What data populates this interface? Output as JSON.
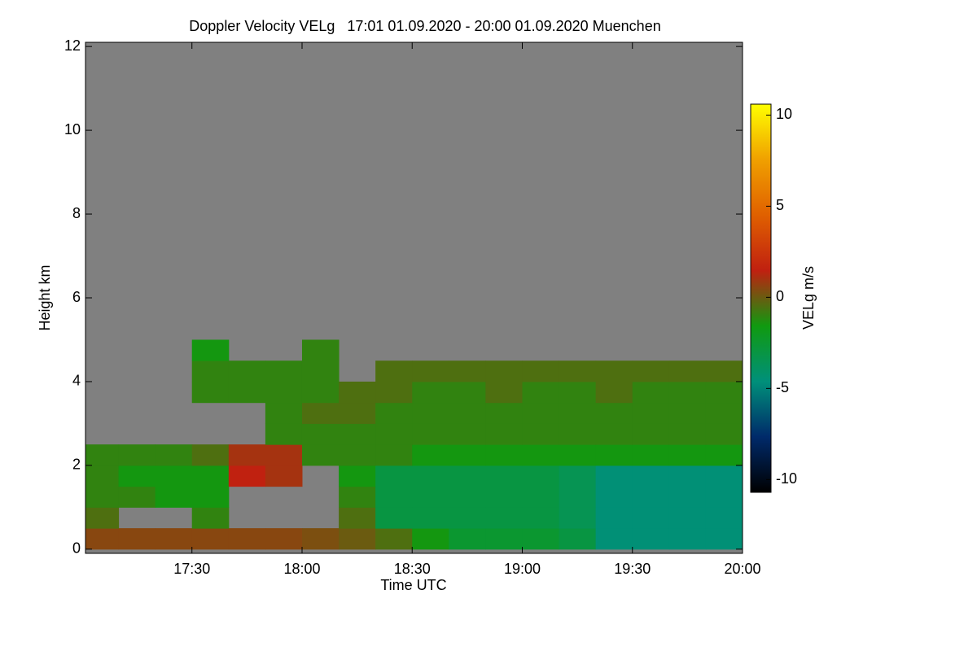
{
  "chart_data": {
    "type": "heatmap",
    "title": "Doppler Velocity VELg   17:01 01.09.2020 - 20:00 01.09.2020 Muenchen",
    "xlabel": "Time UTC",
    "ylabel": "Height km",
    "colorbar_label": "VELg m/s",
    "background": "#808080",
    "xlim": [
      17.0167,
      20.0
    ],
    "xticks": [
      {
        "value": 17.5,
        "label": "17:30"
      },
      {
        "value": 18.0,
        "label": "18:00"
      },
      {
        "value": 18.5,
        "label": "18:30"
      },
      {
        "value": 19.0,
        "label": "19:00"
      },
      {
        "value": 19.5,
        "label": "19:30"
      },
      {
        "value": 20.0,
        "label": "20:00"
      }
    ],
    "ylim": [
      -0.1,
      12.1
    ],
    "yticks": [
      0,
      2,
      4,
      6,
      8,
      10,
      12
    ],
    "clim": [
      -10.7,
      10.6
    ],
    "cticks": [
      -10,
      -5,
      0,
      5,
      10
    ],
    "colormap": [
      "#000000",
      "#002a6a",
      "#00907a",
      "#109a10",
      "#c02010",
      "#e06000",
      "#f0a000",
      "#ffff00"
    ],
    "xbins": [
      17.0167,
      17.1667,
      17.3333,
      17.5,
      17.6667,
      17.8333,
      18.0,
      18.1667,
      18.3333,
      18.5,
      18.6667,
      18.8333,
      19.0,
      19.1667,
      19.3333,
      19.5,
      19.6667,
      19.8333,
      20.0
    ],
    "ybins": [
      0,
      0.5,
      1,
      1.5,
      2,
      2.5,
      3,
      3.5,
      4,
      4.5,
      5
    ],
    "values": [
      [
        0.5,
        0.5,
        0.5,
        0.5,
        0.5,
        0.5,
        0.3,
        0,
        -0.5,
        -1.5,
        -2.5,
        -2.5,
        -2.5,
        -3,
        -4.5,
        -4.5,
        -4.5,
        -4.5
      ],
      [
        -0.5,
        null,
        null,
        -1,
        null,
        null,
        null,
        -0.5,
        -3,
        -3,
        -3,
        -3,
        -3,
        -3.5,
        -4.5,
        -4.5,
        -4.5,
        -4.5
      ],
      [
        -1,
        -1,
        -1.5,
        -1.5,
        null,
        null,
        null,
        -1,
        -3,
        -3,
        -3,
        -3,
        -3,
        -3.5,
        -4.5,
        -4.5,
        -4.5,
        -4.5
      ],
      [
        -1,
        -1.5,
        -1.5,
        -1.5,
        1.5,
        1,
        null,
        -1.5,
        -3,
        -3,
        -3,
        -3,
        -3,
        -3.5,
        -4.5,
        -4.5,
        -4.5,
        -4.5
      ],
      [
        -1,
        -1,
        -1,
        -0.5,
        1,
        1,
        -1,
        -1,
        -1,
        -1.5,
        -1.5,
        -1.5,
        -1.5,
        -1.5,
        -1.5,
        -1.5,
        -1.5,
        -1.5
      ],
      [
        null,
        null,
        null,
        null,
        null,
        -1,
        -1,
        -1,
        -1,
        -1,
        -1,
        -1,
        -1,
        -1,
        -1,
        -1,
        -1,
        -1
      ],
      [
        null,
        null,
        null,
        null,
        null,
        -1,
        -0.5,
        -0.5,
        -1,
        -1,
        -1,
        -1,
        -1,
        -1,
        -1,
        -1,
        -1,
        -1
      ],
      [
        null,
        null,
        null,
        -1,
        -1,
        -1,
        -1,
        -0.5,
        -0.5,
        -1,
        -1,
        -0.5,
        -1,
        -1,
        -0.5,
        -1,
        -1,
        -1
      ],
      [
        null,
        null,
        null,
        -1,
        -1,
        -1,
        -1,
        null,
        -0.5,
        -0.5,
        -0.5,
        -0.5,
        -0.5,
        -0.5,
        -0.5,
        -0.5,
        -0.5,
        -0.5
      ],
      [
        null,
        null,
        null,
        -1.5,
        null,
        null,
        -1,
        null,
        null,
        null,
        null,
        null,
        null,
        null,
        null,
        null,
        null,
        null
      ]
    ]
  }
}
